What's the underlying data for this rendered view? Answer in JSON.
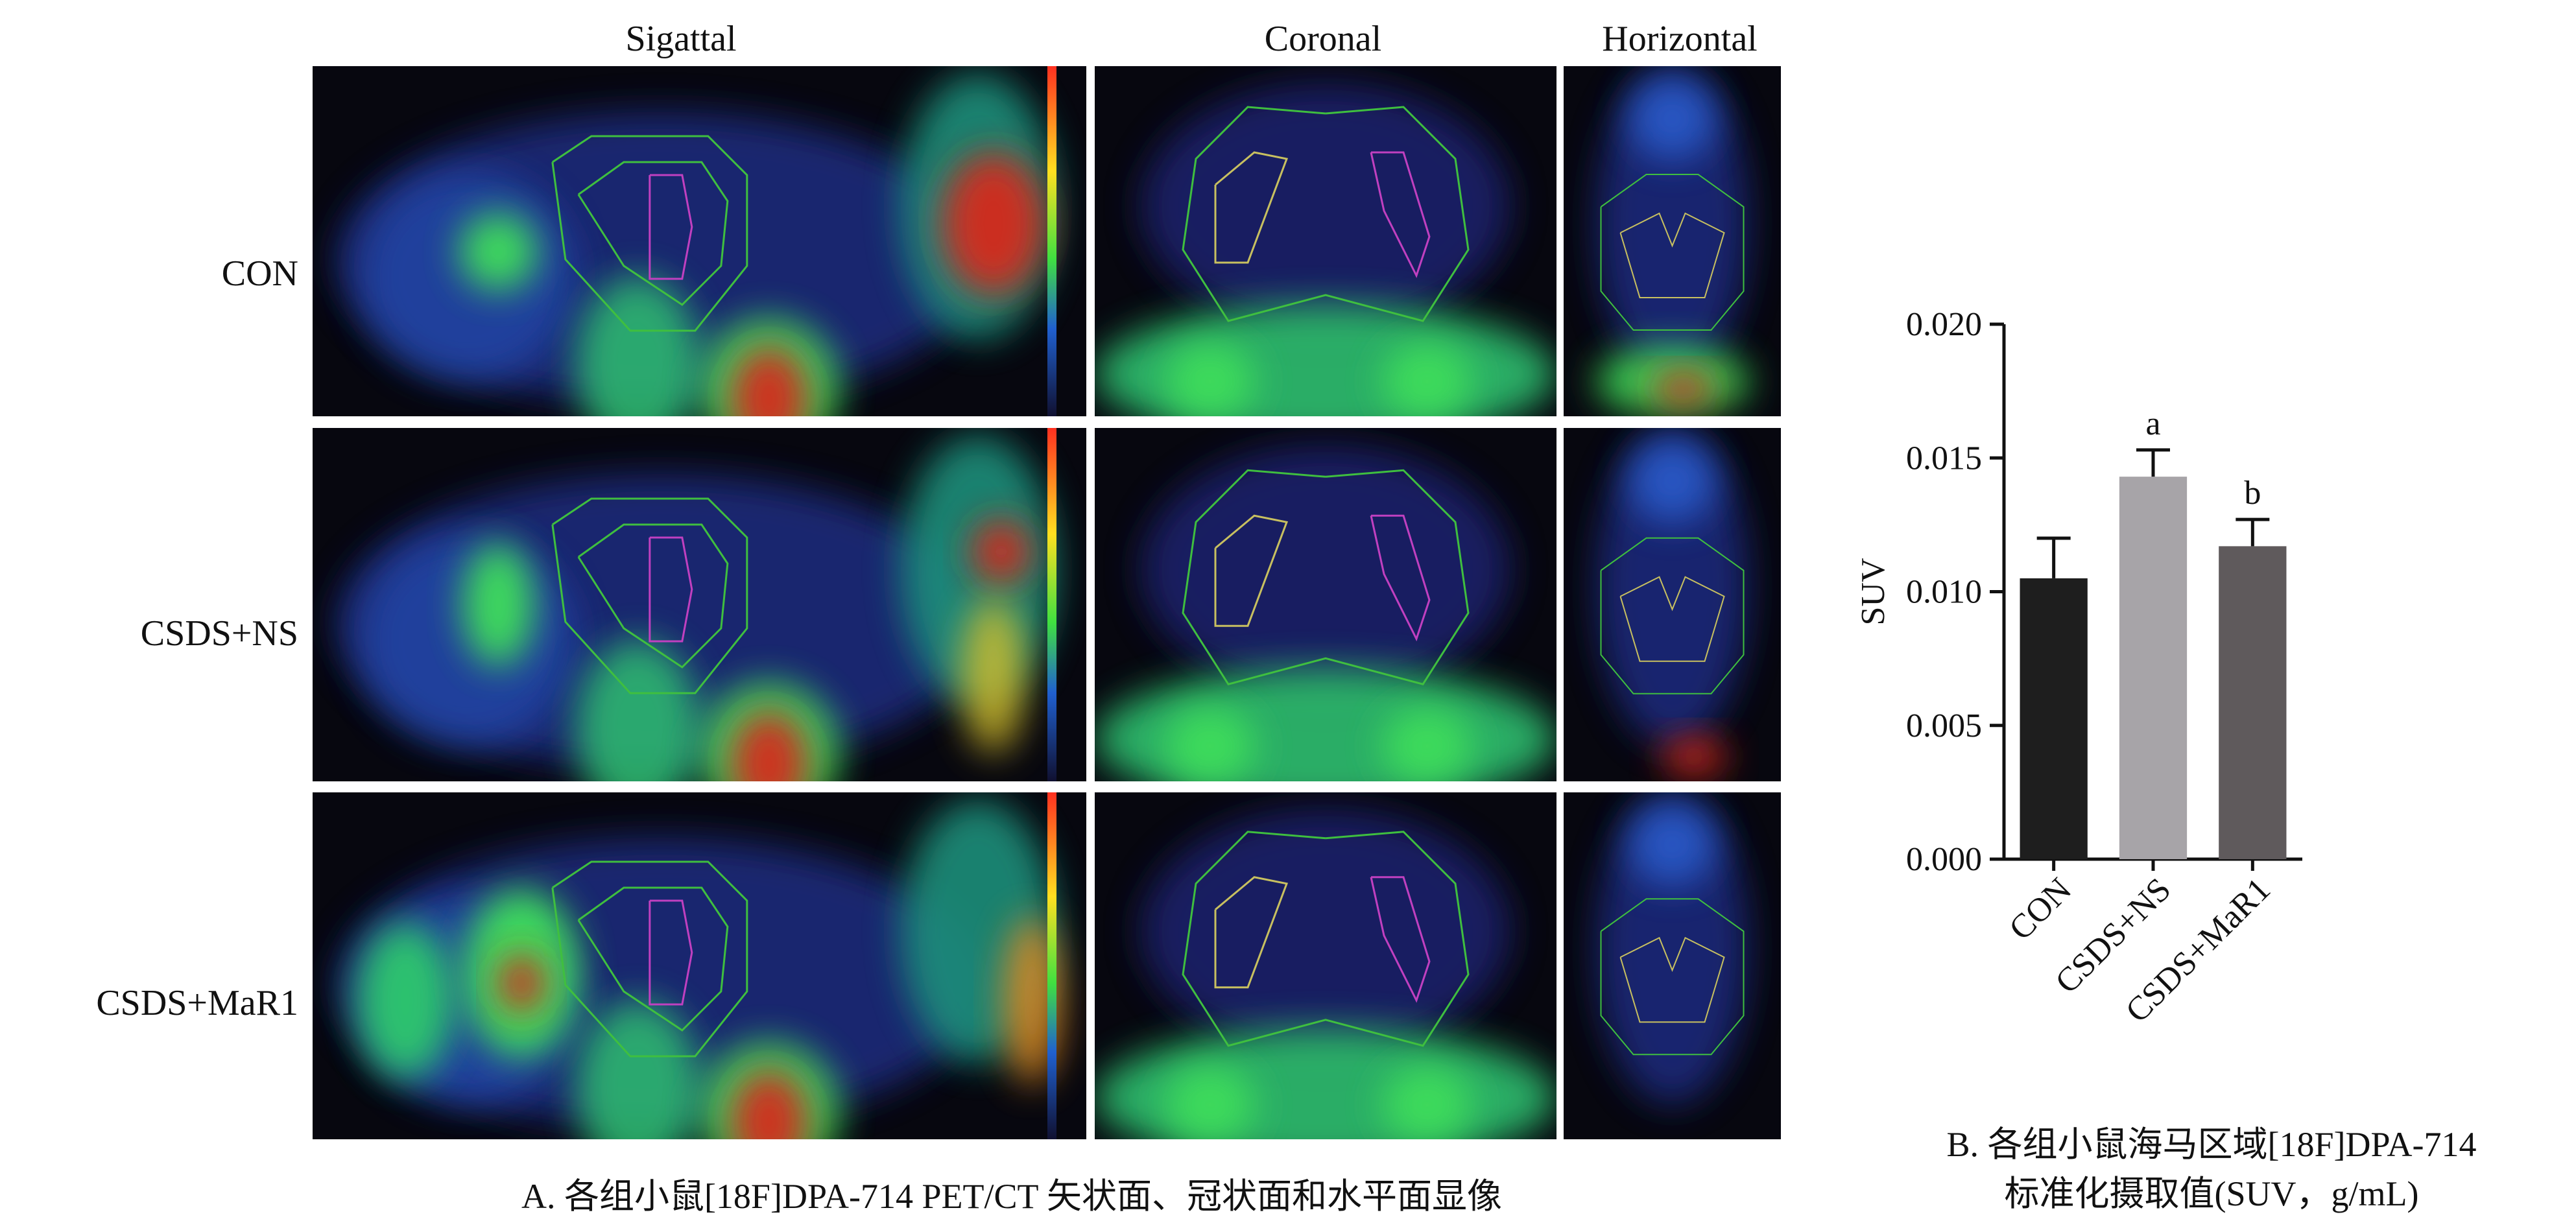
{
  "figure": {
    "column_titles": [
      "Sigattal",
      "Coronal",
      "Horizontal"
    ],
    "row_labels": [
      "CON",
      "CSDS+NS",
      "CSDS+MaR1"
    ],
    "caption_a": "A. 各组小鼠[18F]DPA-714 PET/CT 矢状面、冠状面和水平面显像",
    "caption_b_line1": "B. 各组小鼠海马区域[18F]DPA-714",
    "caption_b_line2": "标准化摄取值(SUV，g/mL)"
  },
  "colors": {
    "background": "#ffffff",
    "pet_background": "#07070f",
    "roi_outer": "#3fbf3f",
    "roi_inner": "#c040c0",
    "bar_con": "#1e1e1e",
    "bar_ns": "#a7a4a8",
    "bar_mar1": "#5f5a5c"
  },
  "chart_data": {
    "type": "bar",
    "categories": [
      "CON",
      "CSDS+NS",
      "CSDS+MaR1"
    ],
    "values": [
      0.0105,
      0.0143,
      0.0117
    ],
    "errors": [
      0.0015,
      0.001,
      0.001
    ],
    "significance": [
      "",
      "a",
      "b"
    ],
    "ylabel": "SUV",
    "ylim": [
      0,
      0.02
    ],
    "yticks": [
      "0.000",
      "0.005",
      "0.010",
      "0.015",
      "0.020"
    ],
    "ytick_values": [
      0,
      0.005,
      0.01,
      0.015,
      0.02
    ],
    "grid": false
  }
}
